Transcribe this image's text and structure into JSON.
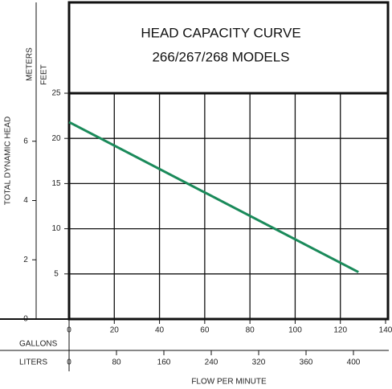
{
  "chart_data": {
    "type": "line",
    "title": "HEAD CAPACITY CURVE",
    "subtitle": "266/267/268 MODELS",
    "y_label": "TOTAL DYNAMIC HEAD",
    "y_unit": "FEET",
    "y2_unit": "METERS",
    "x_label": "FLOW PER MINUTE",
    "x_unit": "GALLONS",
    "x2_unit": "LITERS",
    "xlim": [
      0,
      140
    ],
    "xticks": [
      0,
      20,
      40,
      60,
      80,
      100,
      120,
      140
    ],
    "ylim": [
      0,
      25
    ],
    "yticks": [
      5,
      10,
      15,
      20,
      25
    ],
    "y2lim": [
      0,
      7.62
    ],
    "y2ticks": [
      0,
      2,
      4,
      6
    ],
    "x2_labels": [
      "0",
      "80",
      "160",
      "240",
      "320",
      "360",
      "400"
    ],
    "grid": true,
    "series": [
      {
        "color": "#1a8a5a",
        "x": [
          0,
          128
        ],
        "values": [
          21.8,
          5.2
        ]
      }
    ]
  }
}
